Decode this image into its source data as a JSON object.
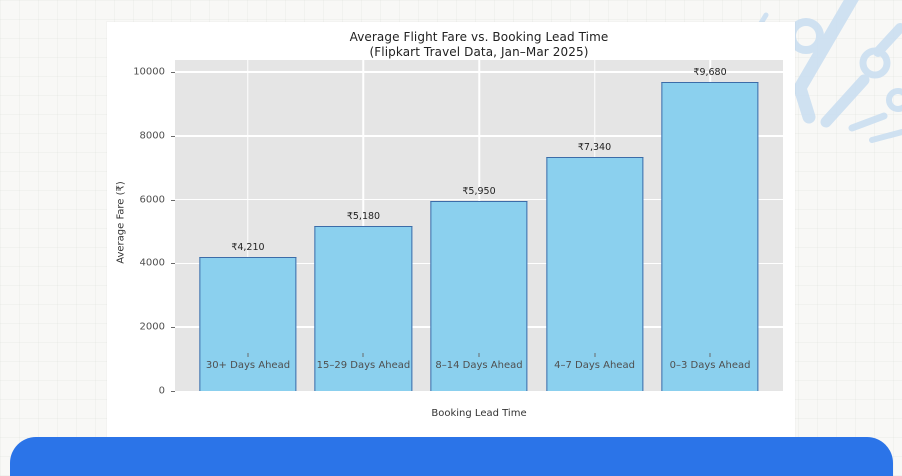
{
  "page": {
    "background_color": "#f8f8f6",
    "accent_bar_color": "#2b74e8",
    "decor_color": "#cde0f1"
  },
  "chart_data": {
    "type": "bar",
    "title": "Average Flight Fare vs. Booking Lead Time",
    "subtitle": "(Flipkart Travel Data, Jan–Mar 2025)",
    "xlabel": "Booking Lead Time",
    "ylabel": "Average Fare (₹)",
    "categories": [
      "30+ Days Ahead",
      "15–29 Days Ahead",
      "8–14 Days Ahead",
      "4–7 Days Ahead",
      "0–3 Days Ahead"
    ],
    "values": [
      4210,
      5180,
      5950,
      7340,
      9680
    ],
    "value_labels": [
      "₹4,210",
      "₹5,180",
      "₹5,950",
      "₹7,340",
      "₹9,680"
    ],
    "yticks": [
      0,
      2000,
      4000,
      6000,
      8000,
      10000
    ],
    "ytick_labels": [
      "0",
      "2000",
      "4000",
      "6000",
      "8000",
      "10000"
    ],
    "ylim": [
      0,
      10380
    ],
    "grid": true,
    "legend": "none",
    "plot_bg": "#e5e5e5",
    "bar_fill": "#8bd0ee",
    "bar_edge": "#3c6ca8"
  }
}
